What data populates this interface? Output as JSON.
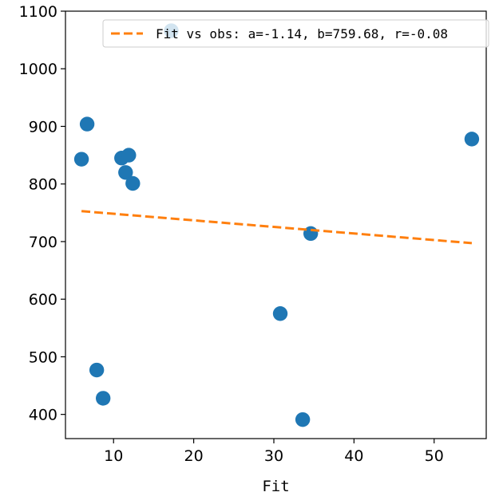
{
  "chart_data": {
    "type": "scatter",
    "xlabel": "Fit",
    "ylabel": "",
    "xlim": [
      4,
      56.5
    ],
    "ylim": [
      358,
      1100
    ],
    "xticks": [
      10,
      20,
      30,
      40,
      50
    ],
    "yticks": [
      400,
      500,
      600,
      700,
      800,
      900,
      1000,
      1100
    ],
    "grid": false,
    "legend_position": "top-right",
    "series": [
      {
        "kind": "scatter",
        "color": "#1f77b4",
        "points": [
          {
            "x": 6.0,
            "y": 843
          },
          {
            "x": 6.7,
            "y": 904
          },
          {
            "x": 7.9,
            "y": 477
          },
          {
            "x": 8.7,
            "y": 428
          },
          {
            "x": 11.0,
            "y": 845
          },
          {
            "x": 11.5,
            "y": 820
          },
          {
            "x": 11.9,
            "y": 850
          },
          {
            "x": 12.4,
            "y": 801
          },
          {
            "x": 17.2,
            "y": 1066
          },
          {
            "x": 30.8,
            "y": 575
          },
          {
            "x": 33.6,
            "y": 391
          },
          {
            "x": 34.6,
            "y": 714
          },
          {
            "x": 54.7,
            "y": 878
          }
        ]
      },
      {
        "kind": "line",
        "name": "Fit vs obs: a=-1.14, b=759.68, r=-0.08",
        "color": "#ff7f0e",
        "dash": "dashed",
        "slope": -1.14,
        "intercept": 759.68,
        "x_range": [
          6.0,
          54.7
        ]
      }
    ]
  }
}
